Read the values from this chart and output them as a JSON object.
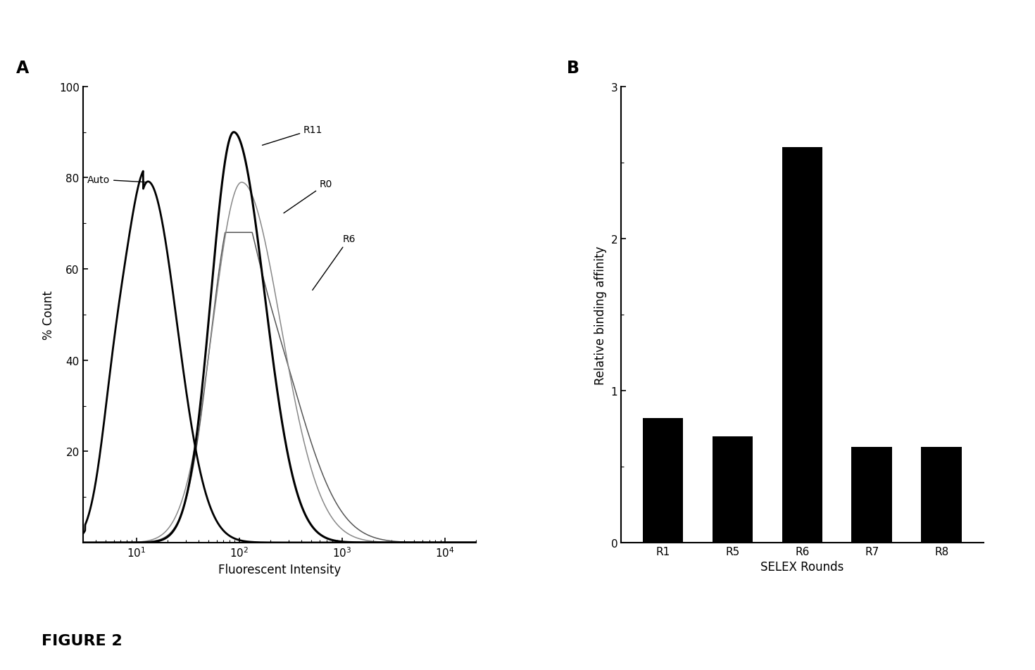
{
  "panel_A_label": "A",
  "panel_B_label": "B",
  "figure_caption": "FIGURE 2",
  "flow_cytometry": {
    "xlabel": "Fluorescent Intensity",
    "ylabel": "% Count",
    "ylim": [
      0,
      100
    ],
    "yticks": [
      0,
      20,
      40,
      60,
      80,
      100
    ],
    "xticks": [
      10,
      100,
      1000,
      10000
    ],
    "xlim_low": 3,
    "xlim_high": 20000
  },
  "bar_chart": {
    "categories": [
      "R1",
      "R5",
      "R6",
      "R7",
      "R8"
    ],
    "values": [
      0.82,
      0.7,
      2.6,
      0.63,
      0.63
    ],
    "bar_color": "#000000",
    "xlabel": "SELEX Rounds",
    "ylabel": "Relative binding affinity",
    "ylim": [
      0,
      3
    ],
    "yticks": [
      0,
      1,
      2,
      3
    ]
  }
}
